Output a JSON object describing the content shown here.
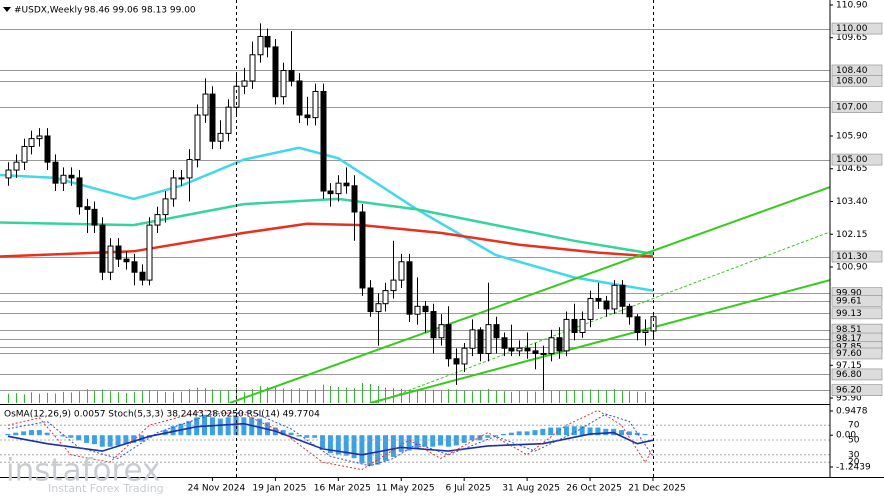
{
  "chart_data": {
    "type": "candlestick",
    "title": "#USDX,Weekly",
    "ohlc_text": "98.46 99.06 98.13 99.00",
    "xlim": [
      -1,
      104.5
    ],
    "ylim": [
      95.71,
      111.09
    ],
    "open": [
      104.3,
      104.6,
      104.9,
      105.5,
      105.8,
      105.9,
      104.9,
      104.1,
      104.4,
      104.3,
      103.2,
      103.1,
      102.5,
      100.7,
      101.7,
      101.2,
      101.1,
      100.7,
      100.4,
      102.5,
      102.9,
      103.5,
      104.3,
      104.3,
      105.0,
      106.7,
      107.5,
      105.7,
      106.0,
      107.0,
      107.8,
      108.0,
      109.0,
      109.7,
      109.3,
      107.4,
      108.4,
      108.0,
      106.7,
      106.6,
      107.6,
      103.8,
      103.7,
      104.1,
      104.0,
      103.0,
      100.1,
      99.2,
      99.5,
      100.0,
      100.4,
      101.1,
      99.1,
      99.4,
      99.2,
      98.2,
      98.7,
      97.4,
      97.2,
      97.8,
      98.5,
      97.6,
      98.7,
      98.2,
      97.8,
      97.7,
      97.8,
      97.7,
      97.6,
      97.6,
      98.2,
      97.7,
      98.9,
      98.4,
      98.9,
      99.7,
      99.6,
      99.3,
      100.2,
      99.4,
      99.0,
      98.4,
      98.46
    ],
    "high": [
      104.9,
      105.2,
      105.8,
      106.1,
      106.2,
      106.2,
      105.2,
      104.7,
      104.7,
      104.6,
      103.5,
      103.4,
      102.8,
      102.0,
      102.0,
      101.5,
      101.4,
      101.0,
      102.8,
      103.2,
      103.8,
      104.6,
      104.6,
      105.4,
      107.1,
      108.1,
      107.8,
      106.5,
      107.3,
      108.3,
      108.5,
      109.5,
      110.2,
      110.0,
      109.6,
      108.7,
      109.9,
      108.3,
      107.4,
      107.9,
      107.9,
      104.1,
      104.4,
      104.7,
      104.4,
      103.3,
      100.4,
      99.9,
      100.3,
      101.9,
      101.4,
      101.4,
      100.5,
      99.6,
      99.5,
      99.1,
      99.4,
      97.8,
      98.0,
      98.9,
      98.6,
      100.3,
      99.0,
      98.4,
      98.7,
      98.1,
      98.4,
      98.0,
      97.9,
      98.5,
      98.6,
      99.2,
      99.5,
      99.2,
      100.0,
      100.3,
      99.8,
      100.4,
      100.4,
      99.5,
      99.1,
      98.9,
      99.06
    ],
    "low": [
      104.0,
      104.3,
      104.6,
      105.2,
      105.5,
      104.6,
      103.8,
      103.8,
      104.0,
      102.9,
      102.2,
      102.2,
      100.4,
      100.4,
      100.9,
      100.8,
      100.2,
      100.2,
      100.2,
      102.2,
      102.6,
      103.2,
      104.0,
      103.4,
      104.7,
      106.4,
      105.4,
      105.4,
      105.7,
      106.7,
      107.5,
      107.7,
      108.7,
      108.9,
      107.1,
      107.1,
      107.8,
      106.4,
      106.3,
      106.3,
      103.5,
      103.2,
      103.4,
      103.7,
      101.9,
      99.8,
      99.0,
      97.9,
      99.2,
      99.7,
      100.1,
      98.8,
      98.7,
      98.4,
      97.6,
      97.9,
      97.1,
      96.4,
      96.9,
      97.5,
      97.3,
      97.3,
      97.6,
      97.5,
      97.5,
      97.5,
      97.4,
      97.0,
      96.2,
      97.3,
      97.4,
      97.5,
      98.1,
      98.2,
      98.6,
      99.3,
      99.0,
      99.1,
      99.1,
      98.7,
      98.1,
      97.9,
      98.13
    ],
    "close": [
      104.6,
      104.9,
      105.5,
      105.8,
      105.9,
      104.9,
      104.1,
      104.4,
      104.3,
      103.2,
      103.1,
      102.5,
      100.7,
      101.7,
      101.2,
      101.1,
      100.7,
      100.4,
      102.5,
      102.9,
      103.5,
      104.3,
      104.3,
      105.0,
      106.7,
      107.5,
      105.7,
      106.0,
      107.0,
      107.8,
      108.0,
      109.0,
      109.7,
      109.3,
      107.4,
      108.4,
      108.0,
      106.7,
      106.6,
      107.6,
      103.8,
      103.7,
      104.1,
      104.0,
      103.0,
      100.1,
      99.2,
      99.5,
      100.0,
      100.4,
      101.1,
      99.1,
      99.4,
      99.2,
      98.2,
      98.7,
      97.4,
      97.2,
      97.8,
      98.5,
      97.6,
      98.7,
      98.2,
      97.8,
      97.7,
      97.8,
      97.7,
      97.6,
      97.6,
      98.2,
      97.7,
      98.9,
      98.4,
      98.9,
      99.7,
      99.6,
      99.3,
      100.2,
      99.4,
      99.0,
      98.4,
      98.46,
      99.0
    ],
    "volume": [
      30,
      32,
      28,
      35,
      30,
      33,
      31,
      36,
      34,
      38,
      45,
      40,
      44,
      38,
      35,
      33,
      36,
      40,
      42,
      38,
      36,
      35,
      37,
      45,
      50,
      48,
      44,
      40,
      42,
      50,
      35,
      45,
      55,
      52,
      50,
      47,
      45,
      48,
      42,
      44,
      60,
      55,
      52,
      50,
      48,
      65,
      62,
      55,
      50,
      48,
      46,
      44,
      42,
      40,
      43,
      41,
      45,
      44,
      40,
      38,
      42,
      46,
      40,
      38,
      36,
      39,
      38,
      37,
      45,
      40,
      39,
      41,
      42,
      40,
      44,
      43,
      41,
      45,
      40,
      38,
      37,
      36,
      20
    ],
    "volume_color": "#2db82d",
    "volume_lim": [
      0,
      130
    ],
    "yticks": [
      {
        "value": 110.9,
        "label": "110.90"
      },
      {
        "value": 109.65,
        "label": "109.65"
      },
      {
        "value": 105.9,
        "label": "105.90"
      },
      {
        "value": 104.65,
        "label": "104.65"
      },
      {
        "value": 103.4,
        "label": "103.40"
      },
      {
        "value": 102.15,
        "label": "102.15"
      },
      {
        "value": 100.9,
        "label": "100.90"
      },
      {
        "value": 97.15,
        "label": "97.15"
      },
      {
        "value": 95.9,
        "label": "95.90"
      }
    ],
    "levels": [
      {
        "value": 110,
        "label": "110.00"
      },
      {
        "value": 108.4,
        "label": "108.40"
      },
      {
        "value": 108,
        "label": "108.00"
      },
      {
        "value": 107,
        "label": "107.00"
      },
      {
        "value": 105,
        "label": "105.00"
      },
      {
        "value": 101.3,
        "label": "101.30"
      },
      {
        "value": 99.9,
        "label": "99.90"
      },
      {
        "value": 99.61,
        "label": "99.61"
      },
      {
        "value": 99.13,
        "label": "99.13"
      },
      {
        "value": 98.51,
        "label": "98.51"
      },
      {
        "value": 98.17,
        "label": "98.17"
      },
      {
        "value": 97.85,
        "label": "97.85"
      },
      {
        "value": 97.6,
        "label": "97.60"
      },
      {
        "value": 96.8,
        "label": "96.80"
      },
      {
        "value": 96.2,
        "label": "96.20"
      }
    ],
    "xticks": [
      {
        "value": 26,
        "label": "24 Nov 2024"
      },
      {
        "value": 34,
        "label": "19 Jan 2025"
      },
      {
        "value": 42,
        "label": "16 Mar 2025"
      },
      {
        "value": 50,
        "label": "11 May 2025"
      },
      {
        "value": 58,
        "label": "6 Jul 2025"
      },
      {
        "value": 66,
        "label": "31 Aug 2025"
      },
      {
        "value": 74,
        "label": "26 Oct 2025"
      },
      {
        "value": 82,
        "label": "21 Dec 2025"
      }
    ],
    "vertical_markers": [
      29,
      82
    ],
    "ma_lines": [
      {
        "color": "#40d8ec",
        "x": [
          -1,
          6,
          16,
          22,
          30,
          37,
          42,
          52,
          62,
          72,
          82
        ],
        "values": [
          104.41,
          104.3,
          103.5,
          104.0,
          105.0,
          105.45,
          105.05,
          103.1,
          101.36,
          100.5,
          100.0
        ]
      },
      {
        "color": "#33d69a",
        "x": [
          -1,
          16,
          30,
          42,
          52,
          62,
          72,
          82
        ],
        "values": [
          102.6,
          102.5,
          103.3,
          103.5,
          103.1,
          102.5,
          101.9,
          101.4
        ]
      },
      {
        "color": "#e8301c",
        "x": [
          -1,
          16,
          30,
          38,
          45,
          55,
          65,
          75,
          82
        ],
        "values": [
          101.3,
          101.5,
          102.2,
          102.55,
          102.5,
          102.2,
          101.75,
          101.45,
          101.3
        ]
      }
    ],
    "trend_lines": [
      {
        "color": "#33cc1a",
        "style": "solid",
        "x": [
          28.2,
          104.5
        ],
        "values": [
          95.71,
          103.95
        ]
      },
      {
        "color": "#33cc1a",
        "style": "solid",
        "x": [
          46,
          104.5
        ],
        "values": [
          95.71,
          100.4
        ]
      },
      {
        "color": "#33cc1a",
        "style": "dashed",
        "x": [
          46.7,
          104.5
        ],
        "values": [
          95.71,
          102.24
        ]
      }
    ],
    "indicator_label": "OsMA(12,26,9) 0.0057 Stoch(5,3,3) 38.2443 28.0250 RSI(14) 49.7704",
    "osma_color": "#3aa0e8",
    "osma_lim": [
      -1.2439,
      0.9478
    ],
    "osma_ticks": [
      0.9478,
      {
        "value": 0,
        "label": "0.00"
      },
      -1.2439
    ],
    "osma": [
      0.05,
      0.1,
      0.15,
      0.2,
      0.2,
      0.1,
      0,
      -0.05,
      -0.1,
      -0.2,
      -0.3,
      -0.35,
      -0.45,
      -0.45,
      -0.4,
      -0.35,
      -0.3,
      -0.25,
      -0.1,
      0.05,
      0.2,
      0.35,
      0.45,
      0.55,
      0.7,
      0.8,
      0.7,
      0.65,
      0.7,
      0.75,
      0.7,
      0.7,
      0.65,
      0.5,
      0.3,
      0.2,
      0.1,
      -0.05,
      -0.1,
      -0.1,
      -0.5,
      -0.7,
      -0.75,
      -0.8,
      -0.9,
      -1.1,
      -1.2,
      -1.15,
      -1.0,
      -0.85,
      -0.65,
      -0.6,
      -0.5,
      -0.45,
      -0.45,
      -0.4,
      -0.45,
      -0.4,
      -0.3,
      -0.2,
      -0.2,
      -0.1,
      -0.05,
      0.05,
      0.1,
      0.15,
      0.15,
      0.2,
      0.25,
      0.3,
      0.3,
      0.35,
      0.35,
      0.35,
      0.3,
      0.3,
      0.25,
      0.25,
      0.2,
      0.15,
      0.1,
      0.05,
      0.0057
    ],
    "osc_lim": [
      0,
      100
    ],
    "osc_ticks": [
      70,
      50,
      30,
      20
    ],
    "osc_lines": [
      {
        "color": "#1a2fa8",
        "style": "solid",
        "x": [
          0,
          5,
          12,
          18,
          24,
          30,
          34,
          40,
          45,
          50,
          56,
          61,
          68,
          74,
          77,
          80,
          82
        ],
        "values": [
          55,
          45,
          35,
          55,
          68,
          72,
          62,
          38,
          30,
          40,
          35,
          42,
          45,
          58,
          60,
          45,
          49.7704
        ]
      },
      {
        "color": "#e83030",
        "style": "dotted",
        "x": [
          0,
          4,
          8,
          13,
          18,
          25,
          30,
          35,
          40,
          45,
          48,
          51,
          55,
          61,
          66,
          71,
          75,
          78,
          81,
          82
        ],
        "values": [
          70,
          80,
          30,
          20,
          70,
          90,
          85,
          60,
          20,
          10,
          30,
          50,
          25,
          60,
          30,
          70,
          90,
          70,
          20,
          38.2443
        ]
      },
      {
        "color": "#3050e0",
        "style": "dotted",
        "x": [
          0,
          5,
          9,
          14,
          19,
          26,
          31,
          36,
          41,
          46,
          49,
          52,
          56,
          62,
          67,
          72,
          76,
          79,
          82
        ],
        "values": [
          65,
          75,
          40,
          25,
          60,
          85,
          88,
          65,
          28,
          15,
          25,
          45,
          30,
          55,
          35,
          60,
          85,
          75,
          28.025
        ]
      }
    ],
    "watermark": "instaforex",
    "watermark_sub": "Instant Forex Trading"
  }
}
